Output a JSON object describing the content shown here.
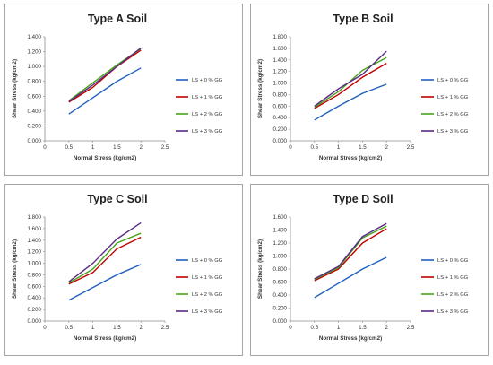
{
  "chart_data": [
    {
      "type": "line",
      "title": "Type A Soil",
      "xlabel": "Normal Stress (kg/cm2)",
      "ylabel": "Shear Stress (kg/cm2)",
      "xlim": [
        0,
        2.5
      ],
      "ylim": [
        0,
        1.4
      ],
      "xticks": [
        "0",
        "0.5",
        "1",
        "1.5",
        "2",
        "2.5"
      ],
      "yticks": [
        "0.000",
        "0.200",
        "0.400",
        "0.600",
        "0.800",
        "1.000",
        "1.200",
        "1.400"
      ],
      "x": [
        0.5,
        1,
        1.5,
        2
      ],
      "series": [
        {
          "name": "LS + 0 % GG",
          "color": "#1f5fbf",
          "values": [
            0.36,
            0.58,
            0.8,
            0.98
          ]
        },
        {
          "name": "LS + 1 % GG",
          "color": "#c00000",
          "values": [
            0.52,
            0.72,
            1.0,
            1.22
          ]
        },
        {
          "name": "LS + 2 % GG",
          "color": "#4aa31c",
          "values": [
            0.54,
            0.78,
            1.02,
            1.24
          ]
        },
        {
          "name": "LS + 3 % GG",
          "color": "#5b2a86",
          "values": [
            0.53,
            0.75,
            1.0,
            1.25
          ]
        }
      ],
      "legend": "right",
      "grid": false
    },
    {
      "type": "line",
      "title": "Type B Soil",
      "xlabel": "Normal Stress (kg/cm2)",
      "ylabel": "Shear Stress (kg/cm2)",
      "xlim": [
        0,
        2.5
      ],
      "ylim": [
        0,
        1.8
      ],
      "xticks": [
        "0",
        "0.5",
        "1",
        "1.5",
        "2",
        "2.5"
      ],
      "yticks": [
        "0.000",
        "0.200",
        "0.400",
        "0.600",
        "0.800",
        "1.000",
        "1.200",
        "1.400",
        "1.600",
        "1.800"
      ],
      "x": [
        0.5,
        1,
        1.5,
        2
      ],
      "series": [
        {
          "name": "LS + 0 % GG",
          "color": "#1f5fbf",
          "values": [
            0.36,
            0.6,
            0.82,
            0.98
          ]
        },
        {
          "name": "LS + 1 % GG",
          "color": "#c00000",
          "values": [
            0.56,
            0.8,
            1.1,
            1.34
          ]
        },
        {
          "name": "LS + 2 % GG",
          "color": "#4aa31c",
          "values": [
            0.58,
            0.85,
            1.22,
            1.44
          ]
        },
        {
          "name": "LS + 3 % GG",
          "color": "#5b2a86",
          "values": [
            0.6,
            0.9,
            1.15,
            1.55
          ]
        }
      ],
      "legend": "right",
      "grid": false
    },
    {
      "type": "line",
      "title": "Type C Soil",
      "xlabel": "Normal Stress (kg/cm2)",
      "ylabel": "Shear Stress (kg/cm2)",
      "xlim": [
        0,
        2.5
      ],
      "ylim": [
        0,
        1.8
      ],
      "xticks": [
        "0",
        "0.5",
        "1",
        "1.5",
        "2",
        "2.5"
      ],
      "yticks": [
        "0.000",
        "0.200",
        "0.400",
        "0.600",
        "0.800",
        "1.000",
        "1.200",
        "1.400",
        "1.600",
        "1.800"
      ],
      "x": [
        0.5,
        1,
        1.5,
        2
      ],
      "series": [
        {
          "name": "LS + 0 % GG",
          "color": "#1f5fbf",
          "values": [
            0.36,
            0.58,
            0.8,
            0.98
          ]
        },
        {
          "name": "LS + 1 % GG",
          "color": "#c00000",
          "values": [
            0.64,
            0.84,
            1.25,
            1.45
          ]
        },
        {
          "name": "LS + 2 % GG",
          "color": "#4aa31c",
          "values": [
            0.66,
            0.9,
            1.35,
            1.52
          ]
        },
        {
          "name": "LS + 3 % GG",
          "color": "#5b2a86",
          "values": [
            0.68,
            1.0,
            1.42,
            1.7
          ]
        }
      ],
      "legend": "right",
      "grid": false
    },
    {
      "type": "line",
      "title": "Type D Soil",
      "xlabel": "Normal Stress (kg/cm2)",
      "ylabel": "Shear Stress (kg/cm2)",
      "xlim": [
        0,
        2.5
      ],
      "ylim": [
        0,
        1.6
      ],
      "xticks": [
        "0",
        "0.5",
        "1",
        "1.5",
        "2",
        "2.5"
      ],
      "yticks": [
        "0.000",
        "0.200",
        "0.400",
        "0.600",
        "0.800",
        "1.000",
        "1.200",
        "1.400",
        "1.600"
      ],
      "x": [
        0.5,
        1,
        1.5,
        2
      ],
      "series": [
        {
          "name": "LS + 0 % GG",
          "color": "#1f5fbf",
          "values": [
            0.36,
            0.58,
            0.8,
            0.98
          ]
        },
        {
          "name": "LS + 1 % GG",
          "color": "#c00000",
          "values": [
            0.62,
            0.8,
            1.2,
            1.42
          ]
        },
        {
          "name": "LS + 2 % GG",
          "color": "#4aa31c",
          "values": [
            0.64,
            0.82,
            1.28,
            1.46
          ]
        },
        {
          "name": "LS + 3 % GG",
          "color": "#5b2a86",
          "values": [
            0.65,
            0.84,
            1.3,
            1.5
          ]
        }
      ],
      "legend": "right",
      "grid": false
    }
  ]
}
